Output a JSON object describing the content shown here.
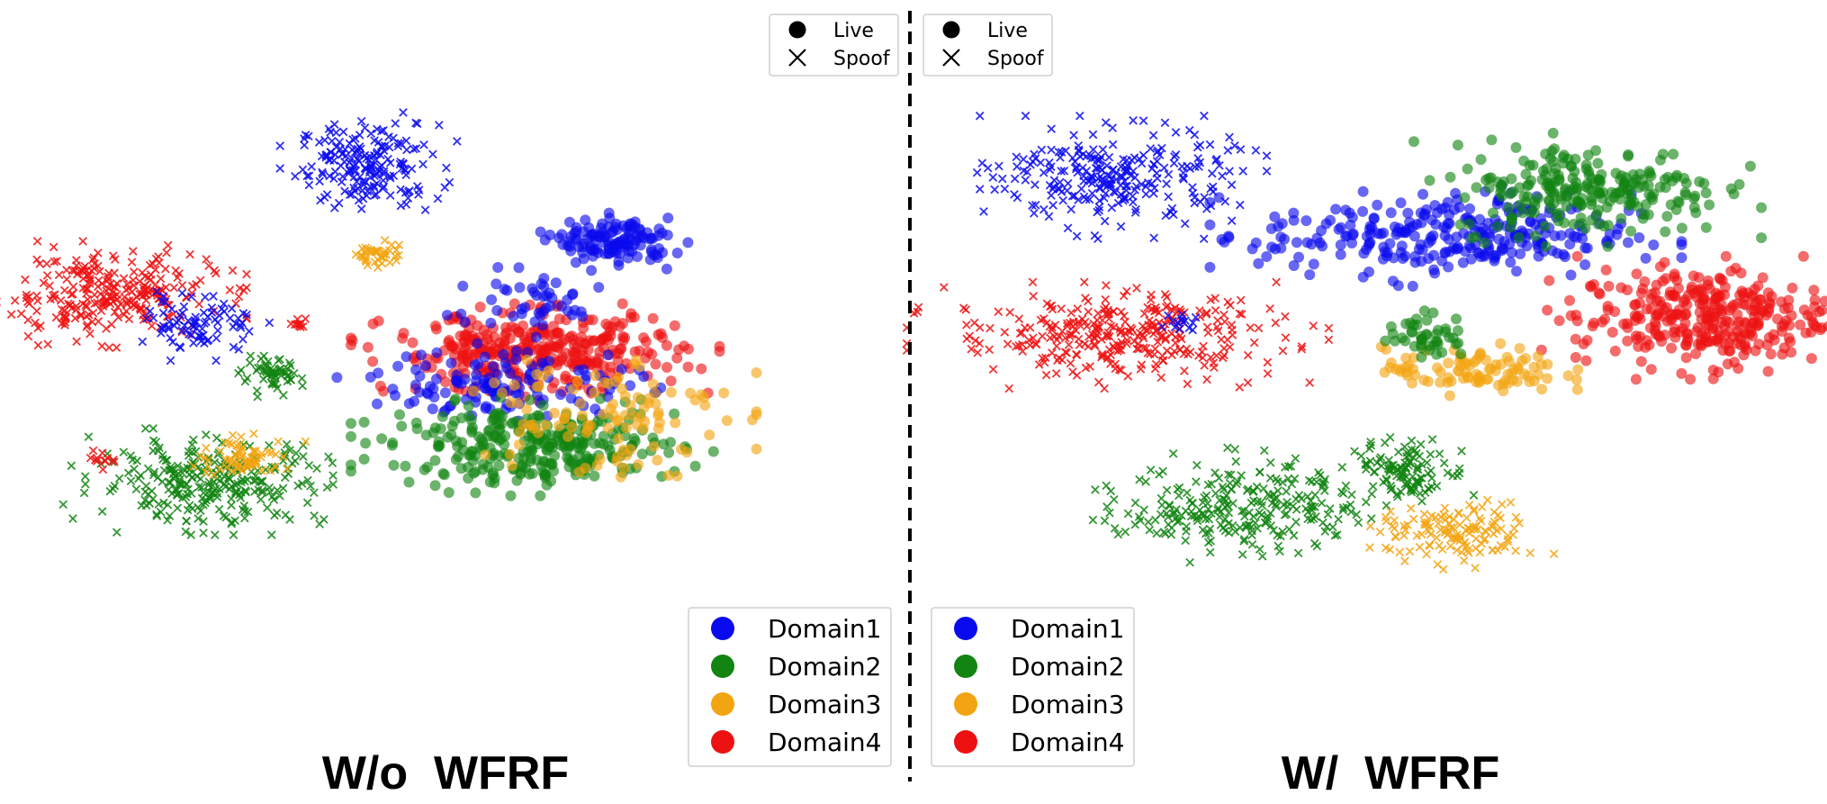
{
  "colors": {
    "Domain1": "#0a0aee",
    "Domain2": "#118411",
    "Domain3": "#f3a412",
    "Domain4": "#ee1111"
  },
  "chart_data": [
    {
      "type": "scatter",
      "title": "W/o  WFRF",
      "xlabel": "",
      "ylabel": "",
      "grid": false,
      "legends": {
        "marker": {
          "placement": "top-right",
          "entries": [
            "Live",
            "Spoof"
          ]
        },
        "domain": {
          "placement": "bottom-right",
          "entries": [
            "Domain1",
            "Domain2",
            "Domain3",
            "Domain4"
          ]
        }
      },
      "clusters": [
        {
          "domain": "Domain1",
          "marker": "Spoof",
          "cx": 0.42,
          "cy": 0.84,
          "rx": 0.072,
          "ry": 0.065,
          "n": 190
        },
        {
          "domain": "Domain3",
          "marker": "Spoof",
          "cx": 0.43,
          "cy": 0.69,
          "rx": 0.022,
          "ry": 0.022,
          "n": 40
        },
        {
          "domain": "Domain4",
          "marker": "Spoof",
          "cx": 0.12,
          "cy": 0.62,
          "rx": 0.115,
          "ry": 0.065,
          "n": 270
        },
        {
          "domain": "Domain1",
          "marker": "Spoof",
          "cx": 0.23,
          "cy": 0.57,
          "rx": 0.055,
          "ry": 0.045,
          "n": 85
        },
        {
          "domain": "Domain4",
          "marker": "Spoof",
          "cx": 0.34,
          "cy": 0.57,
          "rx": 0.01,
          "ry": 0.012,
          "n": 10
        },
        {
          "domain": "Domain2",
          "marker": "Spoof",
          "cx": 0.31,
          "cy": 0.48,
          "rx": 0.03,
          "ry": 0.025,
          "n": 55
        },
        {
          "domain": "Domain2",
          "marker": "Spoof",
          "cx": 0.24,
          "cy": 0.3,
          "rx": 0.12,
          "ry": 0.065,
          "n": 280
        },
        {
          "domain": "Domain3",
          "marker": "Spoof",
          "cx": 0.28,
          "cy": 0.34,
          "rx": 0.05,
          "ry": 0.03,
          "n": 70
        },
        {
          "domain": "Domain4",
          "marker": "Spoof",
          "cx": 0.12,
          "cy": 0.34,
          "rx": 0.012,
          "ry": 0.015,
          "n": 12
        },
        {
          "domain": "Domain1",
          "marker": "Live",
          "cx": 0.7,
          "cy": 0.71,
          "rx": 0.06,
          "ry": 0.035,
          "n": 130
        },
        {
          "domain": "Domain4",
          "marker": "Live",
          "cx": 0.61,
          "cy": 0.52,
          "rx": 0.15,
          "ry": 0.06,
          "n": 340
        },
        {
          "domain": "Domain1",
          "marker": "Live",
          "cx": 0.58,
          "cy": 0.47,
          "rx": 0.14,
          "ry": 0.055,
          "n": 130
        },
        {
          "domain": "Domain2",
          "marker": "Live",
          "cx": 0.61,
          "cy": 0.36,
          "rx": 0.15,
          "ry": 0.06,
          "n": 300
        },
        {
          "domain": "Domain3",
          "marker": "Live",
          "cx": 0.68,
          "cy": 0.42,
          "rx": 0.13,
          "ry": 0.1,
          "n": 110
        },
        {
          "domain": "Domain1",
          "marker": "Live",
          "cx": 0.6,
          "cy": 0.61,
          "rx": 0.09,
          "ry": 0.045,
          "n": 45
        }
      ]
    },
    {
      "type": "scatter",
      "title": "W/  WFRF",
      "xlabel": "",
      "ylabel": "",
      "grid": false,
      "legends": {
        "marker": {
          "placement": "top-left",
          "entries": [
            "Live",
            "Spoof"
          ]
        },
        "domain": {
          "placement": "bottom-left",
          "entries": [
            "Domain1",
            "Domain2",
            "Domain3",
            "Domain4"
          ]
        }
      },
      "clusters": [
        {
          "domain": "Domain1",
          "marker": "Spoof",
          "cx": 0.2,
          "cy": 0.82,
          "rx": 0.12,
          "ry": 0.075,
          "n": 260
        },
        {
          "domain": "Domain4",
          "marker": "Spoof",
          "cx": 0.2,
          "cy": 0.55,
          "rx": 0.17,
          "ry": 0.065,
          "n": 320
        },
        {
          "domain": "Domain1",
          "marker": "Spoof",
          "cx": 0.27,
          "cy": 0.57,
          "rx": 0.02,
          "ry": 0.015,
          "n": 14
        },
        {
          "domain": "Domain2",
          "marker": "Spoof",
          "cx": 0.34,
          "cy": 0.26,
          "rx": 0.12,
          "ry": 0.07,
          "n": 260
        },
        {
          "domain": "Domain2",
          "marker": "Spoof",
          "cx": 0.53,
          "cy": 0.32,
          "rx": 0.055,
          "ry": 0.045,
          "n": 110
        },
        {
          "domain": "Domain3",
          "marker": "Spoof",
          "cx": 0.58,
          "cy": 0.21,
          "rx": 0.08,
          "ry": 0.045,
          "n": 130
        },
        {
          "domain": "Domain1",
          "marker": "Live",
          "cx": 0.57,
          "cy": 0.72,
          "rx": 0.19,
          "ry": 0.065,
          "n": 290
        },
        {
          "domain": "Domain2",
          "marker": "Live",
          "cx": 0.73,
          "cy": 0.8,
          "rx": 0.14,
          "ry": 0.07,
          "n": 240
        },
        {
          "domain": "Domain4",
          "marker": "Live",
          "cx": 0.86,
          "cy": 0.58,
          "rx": 0.13,
          "ry": 0.075,
          "n": 330
        },
        {
          "domain": "Domain3",
          "marker": "Live",
          "cx": 0.6,
          "cy": 0.49,
          "rx": 0.09,
          "ry": 0.035,
          "n": 95
        },
        {
          "domain": "Domain2",
          "marker": "Live",
          "cx": 0.55,
          "cy": 0.55,
          "rx": 0.04,
          "ry": 0.035,
          "n": 45
        }
      ]
    }
  ]
}
